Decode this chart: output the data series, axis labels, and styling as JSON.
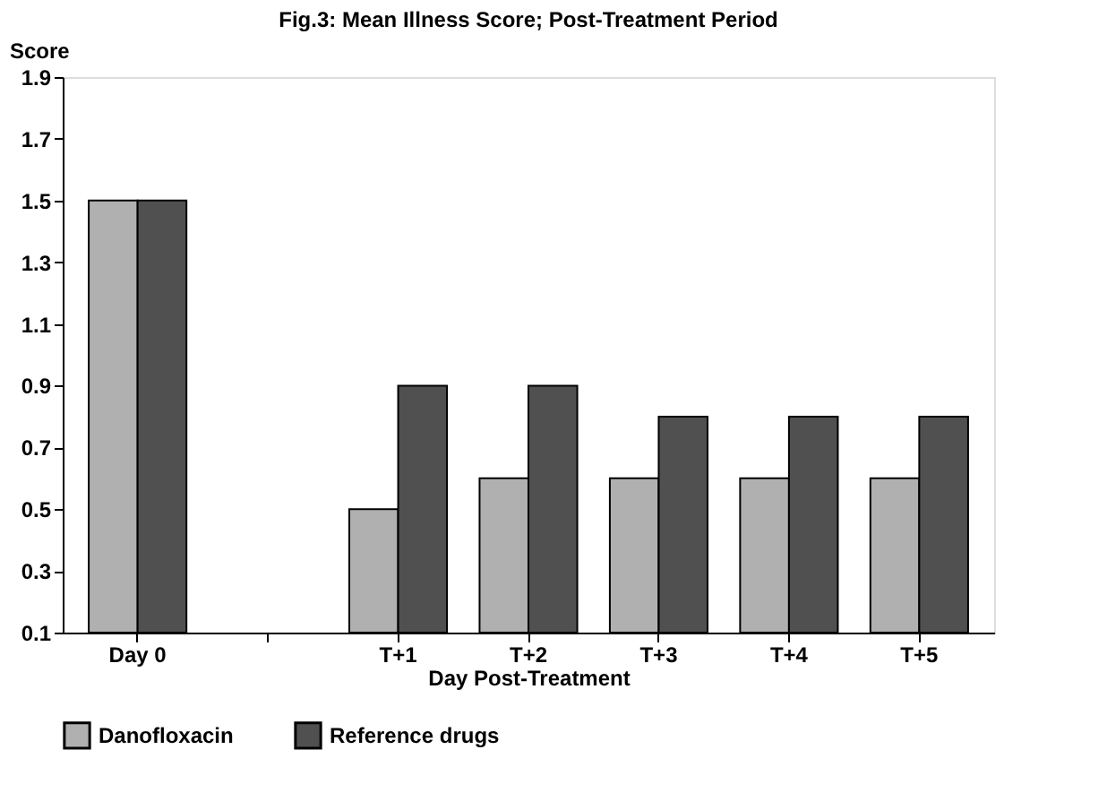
{
  "chart_data": {
    "type": "bar",
    "title": "Fig.3: Mean Illness Score; Post-Treatment Period",
    "xlabel": "Day Post-Treatment",
    "ylabel": "Score",
    "categories": [
      "Day 0",
      null,
      "T+1",
      "T+2",
      "T+3",
      "T+4",
      "T+5"
    ],
    "series": [
      {
        "name": "Danofloxacin",
        "color": "#b0b0b0",
        "values": [
          1.5,
          null,
          0.5,
          0.6,
          0.6,
          0.6,
          0.6
        ]
      },
      {
        "name": "Reference drugs",
        "color": "#505050",
        "values": [
          1.5,
          null,
          0.9,
          0.9,
          0.8,
          0.8,
          0.8
        ]
      }
    ],
    "ylim": [
      0.1,
      1.9
    ],
    "yticks": [
      0.1,
      0.3,
      0.5,
      0.7,
      0.9,
      1.1,
      1.3,
      1.5,
      1.7,
      1.9
    ],
    "grid": false,
    "legend": "bottom"
  }
}
